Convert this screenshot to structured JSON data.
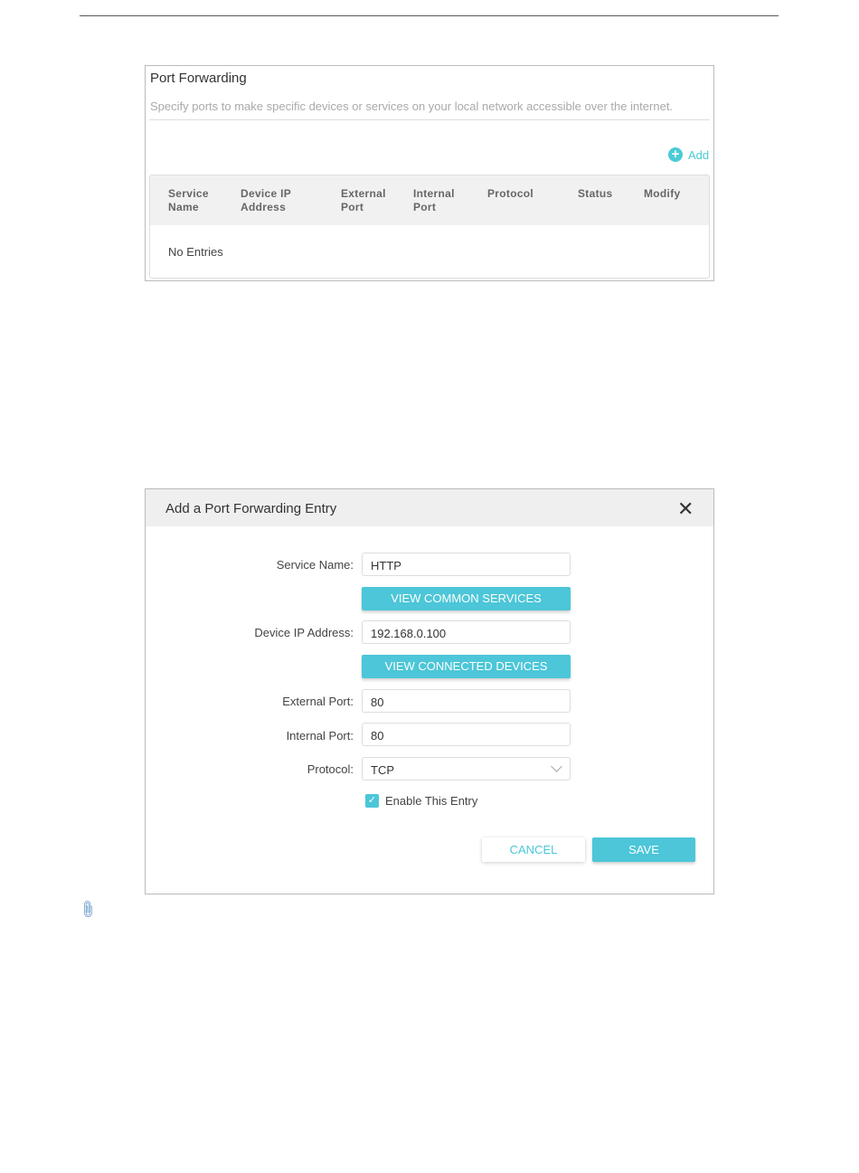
{
  "port_forwarding": {
    "title": "Port Forwarding",
    "description": "Specify ports to make specific devices or services on your local network accessible over the internet.",
    "add_label": "Add",
    "columns": [
      [
        "Service",
        "Name"
      ],
      [
        "Device IP",
        "Address"
      ],
      [
        "External",
        "Port"
      ],
      [
        "Internal",
        "Port"
      ],
      [
        "Protocol",
        ""
      ],
      [
        "Status",
        ""
      ],
      [
        "Modify",
        ""
      ]
    ],
    "empty_text": "No Entries"
  },
  "dialog": {
    "title": "Add a Port Forwarding Entry",
    "fields": {
      "service_name": {
        "label": "Service Name:",
        "value": "HTTP"
      },
      "device_ip": {
        "label": "Device IP Address:",
        "value": "192.168.0.100"
      },
      "external_port": {
        "label": "External Port:",
        "value": "80"
      },
      "internal_port": {
        "label": "Internal Port:",
        "value": "80"
      },
      "protocol": {
        "label": "Protocol:",
        "value": "TCP"
      }
    },
    "view_common_services": "VIEW COMMON SERVICES",
    "view_connected_devices": "VIEW CONNECTED DEVICES",
    "enable_entry": {
      "label": "Enable This Entry",
      "checked": true
    },
    "cancel": "CANCEL",
    "save": "SAVE"
  },
  "colors": {
    "accent": "#4cc6d8"
  }
}
